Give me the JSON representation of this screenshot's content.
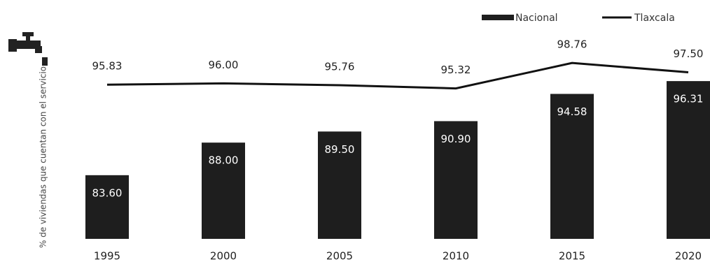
{
  "chart_data": {
    "type": "bar-line",
    "y_label": "% de viviendas que cuentan con el servicio",
    "categories": [
      "1995",
      "2000",
      "2005",
      "2010",
      "2015",
      "2020"
    ],
    "series": [
      {
        "name": "Nacional",
        "type": "bar",
        "color": "#1e1e1e",
        "values": [
          83.6,
          88.0,
          89.5,
          90.9,
          94.58,
          96.31
        ],
        "value_labels": [
          "83.60",
          "88.00",
          "89.50",
          "90.90",
          "94.58",
          "96.31"
        ]
      },
      {
        "name": "Tlaxcala",
        "type": "line",
        "color": "#111111",
        "values": [
          95.83,
          96.0,
          95.76,
          95.32,
          98.76,
          97.5
        ],
        "value_labels": [
          "95.83",
          "96.00",
          "95.76",
          "95.32",
          "98.76",
          "97.50"
        ]
      }
    ],
    "ylim": [
      75,
      100
    ],
    "legend": "top-right"
  }
}
